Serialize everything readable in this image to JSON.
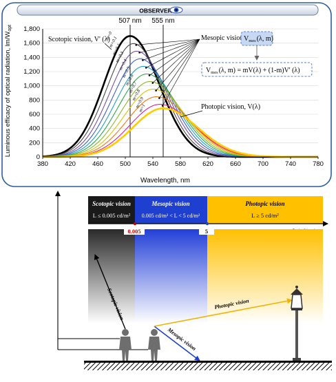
{
  "header": {
    "title": "OBSERVER"
  },
  "chart_data": {
    "type": "line",
    "xlabel": "Wavelength, nm",
    "ylabel": "Luminous efficacy of optical radiation, lm/W",
    "ylabel_sub": "opt",
    "xlim": [
      380,
      780
    ],
    "ylim": [
      0,
      1800
    ],
    "x_ticks": [
      "380",
      "420",
      "460",
      "500",
      "540",
      "580",
      "620",
      "660",
      "700",
      "740",
      "780"
    ],
    "y_ticks": [
      "0",
      "200",
      "400",
      "600",
      "800",
      "1,000",
      "1,200",
      "1,400",
      "1,600",
      "1,800"
    ],
    "ref_lines": [
      {
        "label": "507 nm",
        "x": 507
      },
      {
        "label": "555 nm",
        "x": 555
      }
    ],
    "series": [
      {
        "name": "m=0",
        "peak": 507,
        "max": 1700,
        "color": "#000000"
      },
      {
        "name": "m=0.1",
        "peak": 511.8,
        "max": 1593.3,
        "color": "#4a4a4a"
      },
      {
        "name": "m=0.2",
        "peak": 516.6,
        "max": 1486.6,
        "color": "#7a4fa0"
      },
      {
        "name": "m=0.3",
        "peak": 521.4,
        "max": 1379.9,
        "color": "#3a5fd0"
      },
      {
        "name": "m=0.4",
        "peak": 526.2,
        "max": 1273.2,
        "color": "#1fa0c8"
      },
      {
        "name": "m=0.5",
        "peak": 531,
        "max": 1166.5,
        "color": "#2ea64a"
      },
      {
        "name": "m=0.6",
        "peak": 535.8,
        "max": 1059.8,
        "color": "#8ab82a"
      },
      {
        "name": "m=0.7",
        "peak": 540.6,
        "max": 953.1,
        "color": "#d8c20a"
      },
      {
        "name": "m=0.8",
        "peak": 545.4,
        "max": 846.4,
        "color": "#ee7a10"
      },
      {
        "name": "m=0.9",
        "peak": 550.2,
        "max": 739.7,
        "color": "#e0208a"
      },
      {
        "name": "m=1",
        "peak": 555,
        "max": 683,
        "color": "#ffcc00"
      }
    ],
    "annotations": {
      "scotopic": "Scotopic vision, V' (λ)",
      "mesopic_prefix": "Mesopic vision,",
      "mesopic_box": "V",
      "mesopic_box_sub": "mes",
      "mesopic_box_suffix": "(λ, m)",
      "formula": "(λ, m) =  mV(λ) + (1-m)V' (λ)",
      "formula_V": "V",
      "formula_sub": "mes",
      "photopic": "Photopic vision, V(λ)"
    }
  },
  "scale": {
    "scotopic_title": "Scotopic vision",
    "scotopic_range": "L ≤ 0.005 cd/m²",
    "mesopic_title": "Mesopic vision",
    "mesopic_range": "0.005 cd/m² < L < 5 cd/m²",
    "photopic_title": "Photopic vision",
    "photopic_range": "L ≥ 5 cd/m²",
    "axis_label": "L (cd/m²)",
    "mark_low": "0.005",
    "mark_high": "5"
  },
  "scene": {
    "scotopic_ray": "Scotopic vision",
    "mesopic_ray": "Mesopic vision",
    "photopic_ray": "Photopic vision"
  },
  "colors": {
    "scotopic": "#222222",
    "mesopic": "#1e3fd0",
    "photopic": "#ffc000",
    "frame": "#2c5c9e"
  }
}
